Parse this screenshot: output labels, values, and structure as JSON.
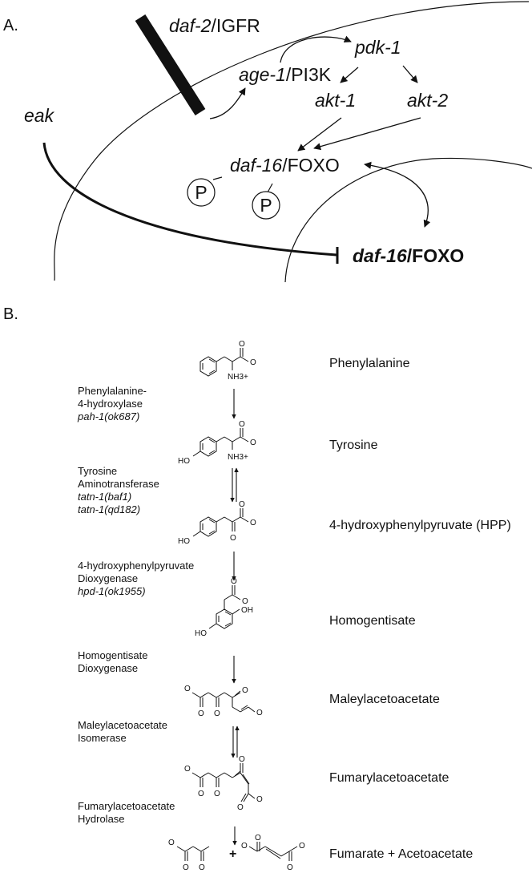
{
  "panel_a": {
    "label": "A.",
    "receptor": {
      "gene": "daf-2",
      "suffix": "/IGFR"
    },
    "age1": {
      "gene": "age-1",
      "suffix": "/PI3K"
    },
    "pdk1": "pdk-1",
    "akt1": "akt-1",
    "akt2": "akt-2",
    "eak": "eak",
    "daf16_cytoplasm": {
      "gene": "daf-16",
      "suffix": "/FOXO"
    },
    "phospho_label": "P",
    "daf16_nucleus": {
      "gene": "daf-16",
      "suffix": "/FOXO"
    }
  },
  "panel_b": {
    "label": "B.",
    "chemical_labels": {
      "carboxylate": "O",
      "ammonium": "NH3+",
      "hydroxyl": "HO",
      "hydroxyl_right": "OH",
      "ketone": "O",
      "plus": "+"
    },
    "steps": [
      {
        "metabolite": "Phenylalanine",
        "enzyme": [
          "Phenylalanine-",
          "4-hydroxylase"
        ],
        "alleles": [
          "pah-1(ok687)"
        ],
        "reversible": false
      },
      {
        "metabolite": "Tyrosine",
        "enzyme": [
          "Tyrosine",
          "Aminotransferase"
        ],
        "alleles": [
          "tatn-1(baf1)",
          "tatn-1(qd182)"
        ],
        "reversible": true
      },
      {
        "metabolite": "4-hydroxyphenylpyruvate (HPP)",
        "enzyme": [
          "4-hydroxyphenylpyruvate",
          "Dioxygenase"
        ],
        "alleles": [
          "hpd-1(ok1955)"
        ],
        "reversible": false
      },
      {
        "metabolite": "Homogentisate",
        "enzyme": [
          "Homogentisate",
          "Dioxygenase"
        ],
        "alleles": [],
        "reversible": false
      },
      {
        "metabolite": "Maleylacetoacetate",
        "enzyme": [
          "Maleylacetoacetate",
          "Isomerase"
        ],
        "alleles": [],
        "reversible": true
      },
      {
        "metabolite": "Fumarylacetoacetate",
        "enzyme": [
          "Fumarylacetoacetate",
          "Hydrolase"
        ],
        "alleles": [],
        "reversible": false
      },
      {
        "metabolite": "Fumarate + Acetoacetate"
      }
    ]
  }
}
